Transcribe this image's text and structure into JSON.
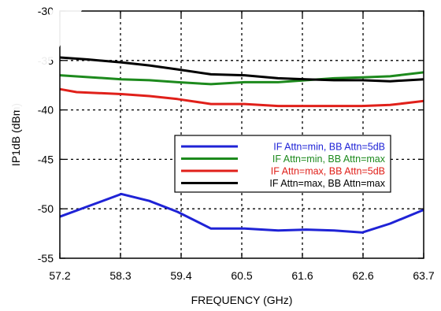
{
  "chart_data": {
    "type": "line",
    "xlabel": "FREQUENCY (GHz)",
    "ylabel": "IP1dB (dBm)",
    "x_ticks": [
      "57.2",
      "58.3",
      "59.4",
      "60.5",
      "61.6",
      "62.6",
      "63.7"
    ],
    "xlim": [
      57.2,
      63.7
    ],
    "ylim": [
      -55,
      -30
    ],
    "y_ticks": [
      -30,
      -35,
      -40,
      -45,
      -50,
      -55
    ],
    "grid": true,
    "legend_position": "center-right",
    "series": [
      {
        "name": "IF Attn=min, BB Attn=5dB",
        "color": "#1f23d6",
        "x": [
          57.2,
          58.3,
          58.8,
          59.3,
          59.9,
          60.5,
          61.1,
          61.6,
          62.1,
          62.6,
          63.1,
          63.7
        ],
        "y": [
          -50.8,
          -48.5,
          -49.2,
          -50.3,
          -52.0,
          -52.0,
          -52.2,
          -52.1,
          -52.2,
          -52.4,
          -51.5,
          -50.1
        ]
      },
      {
        "name": "IF Attn=min, BB Attn=max",
        "color": "#1d8a1d",
        "x": [
          57.2,
          58.3,
          58.8,
          59.3,
          59.9,
          60.5,
          61.1,
          61.6,
          62.1,
          62.6,
          63.1,
          63.7
        ],
        "y": [
          -36.5,
          -36.9,
          -37.0,
          -37.2,
          -37.4,
          -37.2,
          -37.2,
          -37.0,
          -36.8,
          -36.7,
          -36.6,
          -36.2
        ]
      },
      {
        "name": "IF Attn=max, BB Attn=5dB",
        "color": "#e0201a",
        "x": [
          57.2,
          57.5,
          58.3,
          58.8,
          59.3,
          59.9,
          60.5,
          61.1,
          61.6,
          62.1,
          62.6,
          63.1,
          63.7
        ],
        "y": [
          -37.9,
          -38.2,
          -38.4,
          -38.6,
          -38.9,
          -39.4,
          -39.4,
          -39.6,
          -39.6,
          -39.6,
          -39.6,
          -39.5,
          -39.1
        ]
      },
      {
        "name": "IF Attn=max, BB Attn=max",
        "color": "#000000",
        "x": [
          57.2,
          57.7,
          58.3,
          58.8,
          59.3,
          59.9,
          60.5,
          61.1,
          61.6,
          62.1,
          62.6,
          63.1,
          63.7
        ],
        "y": [
          -34.7,
          -34.9,
          -35.2,
          -35.5,
          -35.9,
          -36.4,
          -36.5,
          -36.8,
          -36.9,
          -37.0,
          -37.0,
          -37.1,
          -36.9
        ]
      }
    ]
  }
}
